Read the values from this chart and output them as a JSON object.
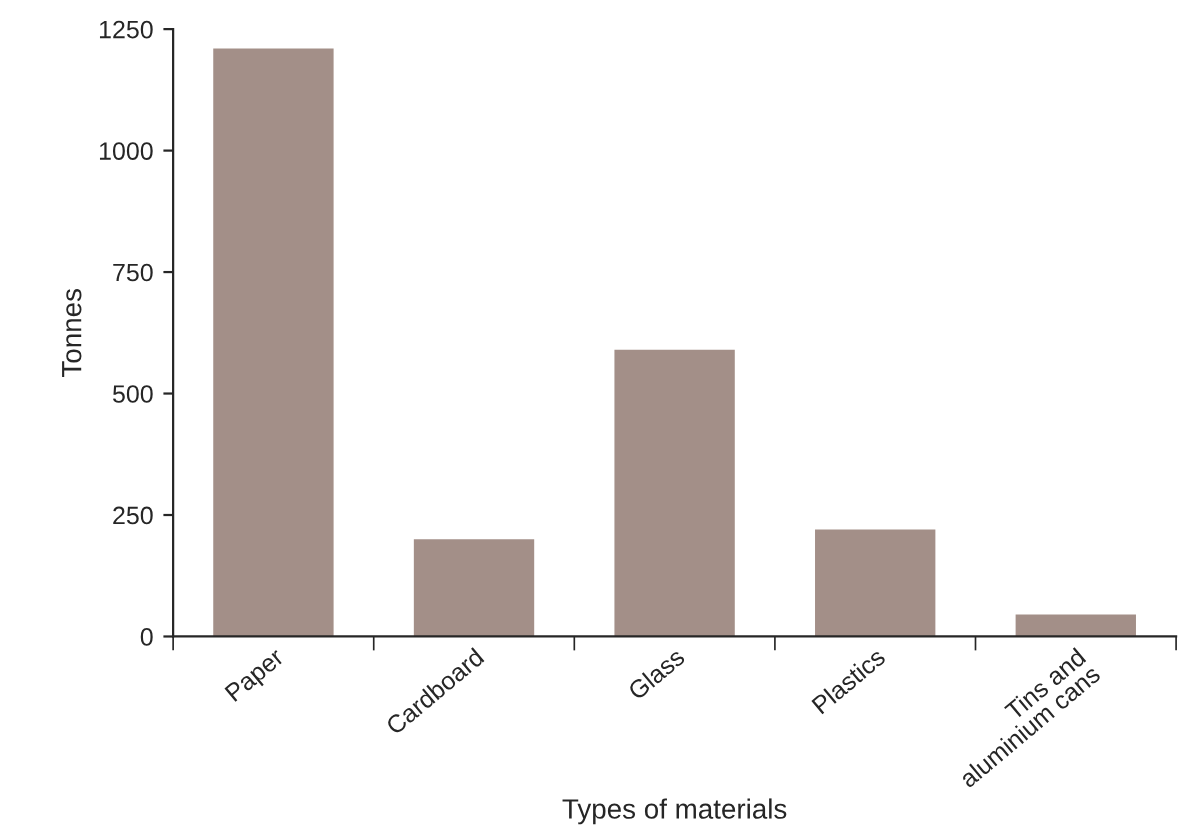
{
  "chart_data": {
    "type": "bar",
    "xlabel": "Types of materials",
    "ylabel": "Tonnes",
    "categories": [
      "Paper",
      "Cardboard",
      "Glass",
      "Plastics",
      "Tins and\naluminium cans"
    ],
    "values": [
      1210,
      200,
      590,
      220,
      45
    ],
    "color": "#a38f88",
    "ylim": [
      0,
      1250
    ],
    "yticks": [
      0,
      250,
      500,
      750,
      1000,
      1250
    ],
    "grid": false
  }
}
